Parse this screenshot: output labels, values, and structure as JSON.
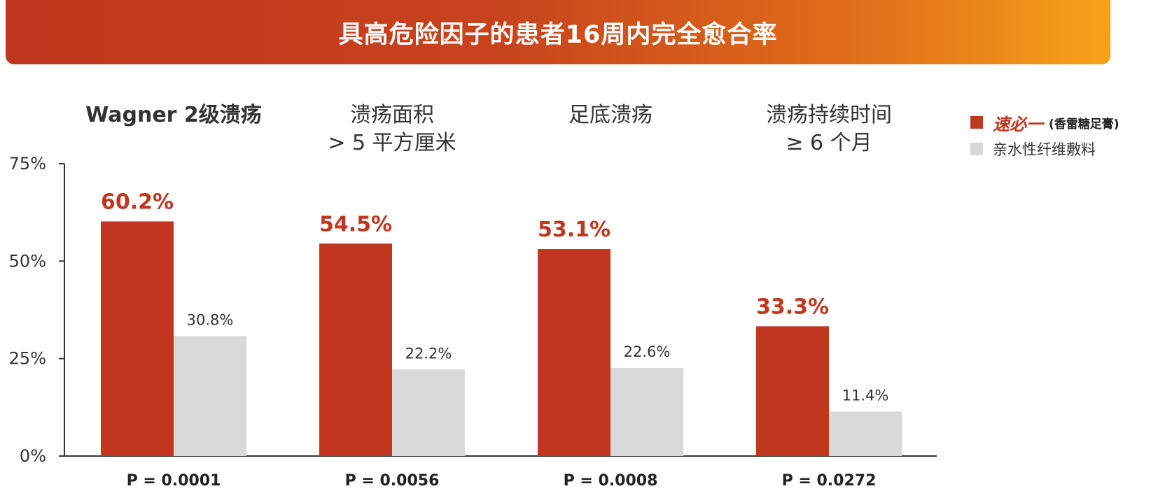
{
  "title": "具高危险因子的患者16周内完全愈合率",
  "legend": {
    "series1_brand": "速必一",
    "series1_sub": "(香雷糖足膏)",
    "series2_label": "亲水性纤维敷料",
    "series1_color": "#c0361f",
    "series2_color": "#d9d9d9"
  },
  "chart_data": {
    "type": "bar",
    "y_tick_labels": [
      "0%",
      "25%",
      "50%",
      "75%"
    ],
    "ylim": [
      0,
      75
    ],
    "yticks": [
      0,
      25,
      50,
      75
    ],
    "grid": false,
    "legend_position": "top-right",
    "categories": [
      {
        "lines": [
          "Wagner 2级溃疡"
        ],
        "p_value": "P = 0.0001"
      },
      {
        "lines": [
          "溃疡面积",
          "> 5 平方厘米"
        ],
        "p_value": "P = 0.0056"
      },
      {
        "lines": [
          "足底溃疡"
        ],
        "p_value": "P = 0.0008"
      },
      {
        "lines": [
          "溃疡持续时间",
          "≥ 6 个月"
        ],
        "p_value": "P = 0.0272"
      }
    ],
    "series": [
      {
        "name": "速必一 (香雷糖足膏)",
        "color": "#c0361f",
        "values": [
          60.2,
          54.5,
          53.1,
          33.3
        ],
        "labels": [
          "60.2%",
          "54.5%",
          "53.1%",
          "33.3%"
        ]
      },
      {
        "name": "亲水性纤维敷料",
        "color": "#d9d9d9",
        "values": [
          30.8,
          22.2,
          22.6,
          11.4
        ],
        "labels": [
          "30.8%",
          "22.2%",
          "22.6%",
          "11.4%"
        ]
      }
    ]
  }
}
